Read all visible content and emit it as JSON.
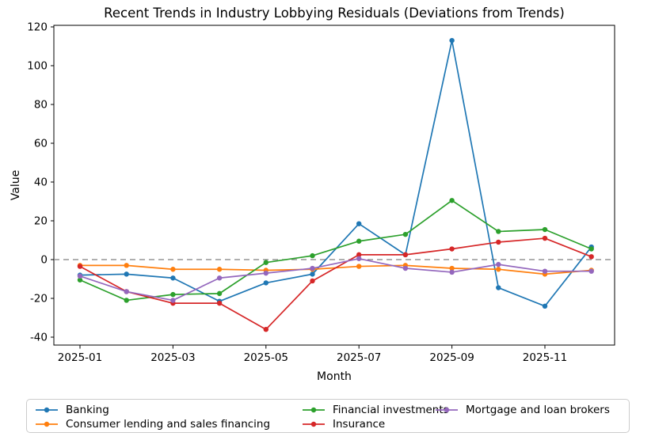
{
  "chart_data": {
    "type": "line",
    "title": "Recent Trends in Industry Lobbying Residuals (Deviations from Trends)",
    "xlabel": "Month",
    "ylabel": "Value",
    "x": [
      "2025-01",
      "2025-02",
      "2025-03",
      "2025-04",
      "2025-05",
      "2025-06",
      "2025-07",
      "2025-08",
      "2025-09",
      "2025-10",
      "2025-11",
      "2025-12"
    ],
    "x_tick_labels": [
      "2025-01",
      "2025-03",
      "2025-05",
      "2025-07",
      "2025-09",
      "2025-11"
    ],
    "y_ticks": [
      120,
      100,
      80,
      60,
      40,
      20,
      0,
      -20,
      -40
    ],
    "ylim": [
      -44,
      121
    ],
    "grid": false,
    "zero_reference_line": {
      "y": 0,
      "style": "dashed",
      "color": "#7f7f7f"
    },
    "legend_position": "bottom",
    "legend_columns": 3,
    "series": [
      {
        "name": "Banking",
        "color": "#1f77b4",
        "values": [
          -8,
          -7.5,
          -9.5,
          -21.5,
          -12,
          -7.5,
          18.5,
          2.5,
          113,
          -14.5,
          -24,
          6.5
        ]
      },
      {
        "name": "Consumer lending and sales financing",
        "color": "#ff7f0e",
        "values": [
          -3,
          -3,
          -5,
          -5,
          -5.5,
          -5,
          -3.5,
          -3,
          -4.5,
          -5,
          -7.5,
          -5.5
        ]
      },
      {
        "name": "Financial investments",
        "color": "#2ca02c",
        "values": [
          -10.5,
          -21,
          -18,
          -17.5,
          -1.5,
          2,
          9.5,
          13,
          30.5,
          14.5,
          15.5,
          5.5
        ]
      },
      {
        "name": "Insurance",
        "color": "#d62728",
        "values": [
          -3.5,
          -16.5,
          -22.5,
          -22.5,
          -36,
          -11,
          2.5,
          2.5,
          5.5,
          9,
          11,
          1.5
        ]
      },
      {
        "name": "Mortgage and loan brokers",
        "color": "#9467bd",
        "values": [
          -8.5,
          -16.5,
          -21,
          -9.5,
          -7,
          -4.5,
          0.5,
          -4.5,
          -6.5,
          -2.5,
          -6,
          -6
        ]
      }
    ]
  }
}
